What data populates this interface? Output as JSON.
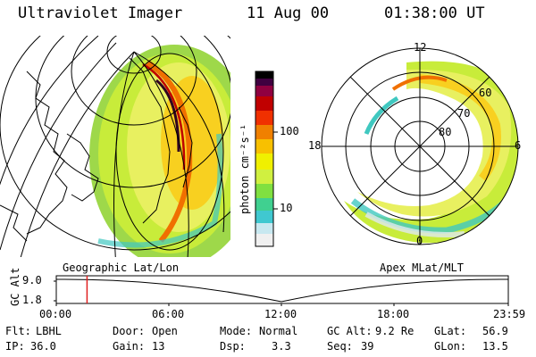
{
  "header": {
    "instrument": "Ultraviolet Imager",
    "date": "11 Aug 00",
    "time": "01:38:00 UT"
  },
  "colorbar": {
    "label": "photon cm⁻²s⁻¹",
    "ticks": [
      "100",
      "10"
    ],
    "colors": [
      "#f0f0f0",
      "#c8e8f0",
      "#40c8d0",
      "#40d090",
      "#80e040",
      "#d0f040",
      "#f0f000",
      "#f8c000",
      "#f08000",
      "#f03000",
      "#c00000",
      "#900040",
      "#400040",
      "#000000"
    ]
  },
  "polar": {
    "mlt_labels": {
      "top": "12",
      "left": "18",
      "right": "6",
      "bottom": "0"
    },
    "lat_labels": [
      "60",
      "70",
      "80"
    ]
  },
  "map_labels": {
    "left": "Geographic Lat/Lon",
    "right": "Apex MLat/MLT"
  },
  "altitude_plot": {
    "ylabel": "GC Alt",
    "yticks": [
      "9.0",
      "1.8"
    ],
    "xticks": [
      "00:00",
      "06:00",
      "12:00",
      "18:00",
      "23:59"
    ],
    "marker_time_hours": 1.633
  },
  "info": {
    "filter_label": "Flt:",
    "filter_value": "LBHL",
    "ip_label": "IP:",
    "ip_value": "36.0",
    "door_label": "Door:",
    "door_value": "Open",
    "gain_label": "Gain:",
    "gain_value": "13",
    "mode_label": "Mode:",
    "mode_value": "Normal",
    "dsp_label": "Dsp:",
    "dsp_value": "3.3",
    "gcalt_label": "GC Alt:",
    "gcalt_value": "9.2 Re",
    "seq_label": "Seq:",
    "seq_value": "39",
    "glat_label": "GLat:",
    "glat_value": "56.9",
    "glon_label": "GLon:",
    "glon_value": "13.5"
  }
}
